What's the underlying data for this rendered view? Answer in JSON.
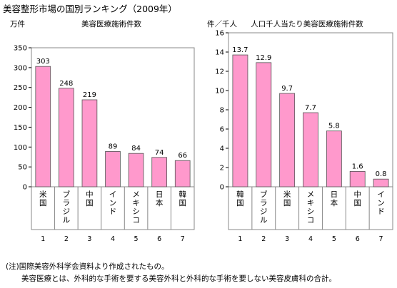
{
  "page": {
    "title": "美容整形市場の国別ランキング（2009年）",
    "notes": [
      "(注)国際美容外科学会資料より作成されたもの。",
      "美容医療とは、外科的な手術を要する美容外科と外科的な手術を要しない美容皮膚科の合計。"
    ]
  },
  "colors": {
    "bar": "#ff99cc",
    "bar_stroke": "#555555",
    "plot_border": "#888888"
  },
  "chart_data": [
    {
      "type": "bar",
      "title": "美容医療施術件数",
      "ylabel": "万件",
      "ylim": [
        0,
        350
      ],
      "yticks": [
        0,
        50,
        100,
        150,
        200,
        250,
        300,
        350
      ],
      "categories": [
        "米国",
        "ブラジル",
        "中国",
        "インド",
        "メキシコ",
        "日本",
        "韓国"
      ],
      "ranks": [
        "1",
        "2",
        "3",
        "4",
        "5",
        "6",
        "7"
      ],
      "values": [
        303,
        248,
        219,
        89,
        84,
        74,
        66
      ],
      "value_labels": [
        "303",
        "248",
        "219",
        "89",
        "84",
        "74",
        "66"
      ],
      "grid": false,
      "legend": "none"
    },
    {
      "type": "bar",
      "title": "人口千人当たり美容医療施術件数",
      "ylabel": "件／千人",
      "ylim": [
        0,
        16
      ],
      "yticks": [
        0,
        2,
        4,
        6,
        8,
        10,
        12,
        14,
        16
      ],
      "categories": [
        "韓国",
        "ブラジル",
        "米国",
        "メキシコ",
        "日本",
        "中国",
        "インド"
      ],
      "ranks": [
        "1",
        "2",
        "3",
        "4",
        "5",
        "6",
        "7"
      ],
      "values": [
        13.7,
        12.9,
        9.7,
        7.7,
        5.8,
        1.6,
        0.8
      ],
      "value_labels": [
        "13.7",
        "12.9",
        "9.7",
        "7.7",
        "5.8",
        "1.6",
        "0.8"
      ],
      "grid": false,
      "legend": "none"
    }
  ]
}
